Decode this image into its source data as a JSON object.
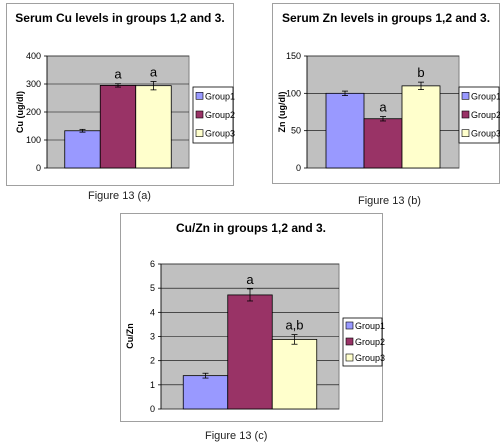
{
  "chart_data": [
    {
      "type": "bar",
      "title": "Serum Cu levels in groups 1,2 and 3.",
      "ylabel": "Cu (ug/dl)",
      "ylim": [
        0,
        400
      ],
      "yticks": [
        0,
        100,
        200,
        300,
        400
      ],
      "grid": true,
      "legend_position": "right",
      "series": [
        {
          "name": "Group1",
          "color": "#9999ff",
          "value": 133,
          "error": 5,
          "label": ""
        },
        {
          "name": "Group2",
          "color": "#993366",
          "value": 295,
          "error": 6,
          "label": "a"
        },
        {
          "name": "Group3",
          "color": "#ffffcc",
          "value": 294,
          "error": 15,
          "label": "a"
        }
      ],
      "caption": "Figure 13 (a)"
    },
    {
      "type": "bar",
      "title": "Serum Zn levels in groups 1,2 and 3.",
      "ylabel": "Zn (ug/dl)",
      "ylim": [
        0,
        150
      ],
      "yticks": [
        0,
        50,
        100,
        150
      ],
      "grid": true,
      "legend_position": "right",
      "series": [
        {
          "name": "Group1",
          "color": "#9999ff",
          "value": 100,
          "error": 3,
          "label": ""
        },
        {
          "name": "Group2",
          "color": "#993366",
          "value": 66,
          "error": 3,
          "label": "a"
        },
        {
          "name": "Group3",
          "color": "#ffffcc",
          "value": 110,
          "error": 5,
          "label": "b"
        }
      ],
      "caption": "Figure 13 (b)"
    },
    {
      "type": "bar",
      "title": "Cu/Zn in groups 1,2 and 3.",
      "ylabel": "Cu/Zn",
      "ylim": [
        0,
        6
      ],
      "yticks": [
        0,
        1,
        2,
        3,
        4,
        5,
        6
      ],
      "grid": true,
      "legend_position": "right",
      "series": [
        {
          "name": "Group1",
          "color": "#9999ff",
          "value": 1.38,
          "error": 0.1,
          "label": ""
        },
        {
          "name": "Group2",
          "color": "#993366",
          "value": 4.72,
          "error": 0.25,
          "label": "a"
        },
        {
          "name": "Group3",
          "color": "#ffffcc",
          "value": 2.88,
          "error": 0.2,
          "label": "a,b"
        }
      ],
      "caption": "Figure 13 (c)"
    }
  ]
}
